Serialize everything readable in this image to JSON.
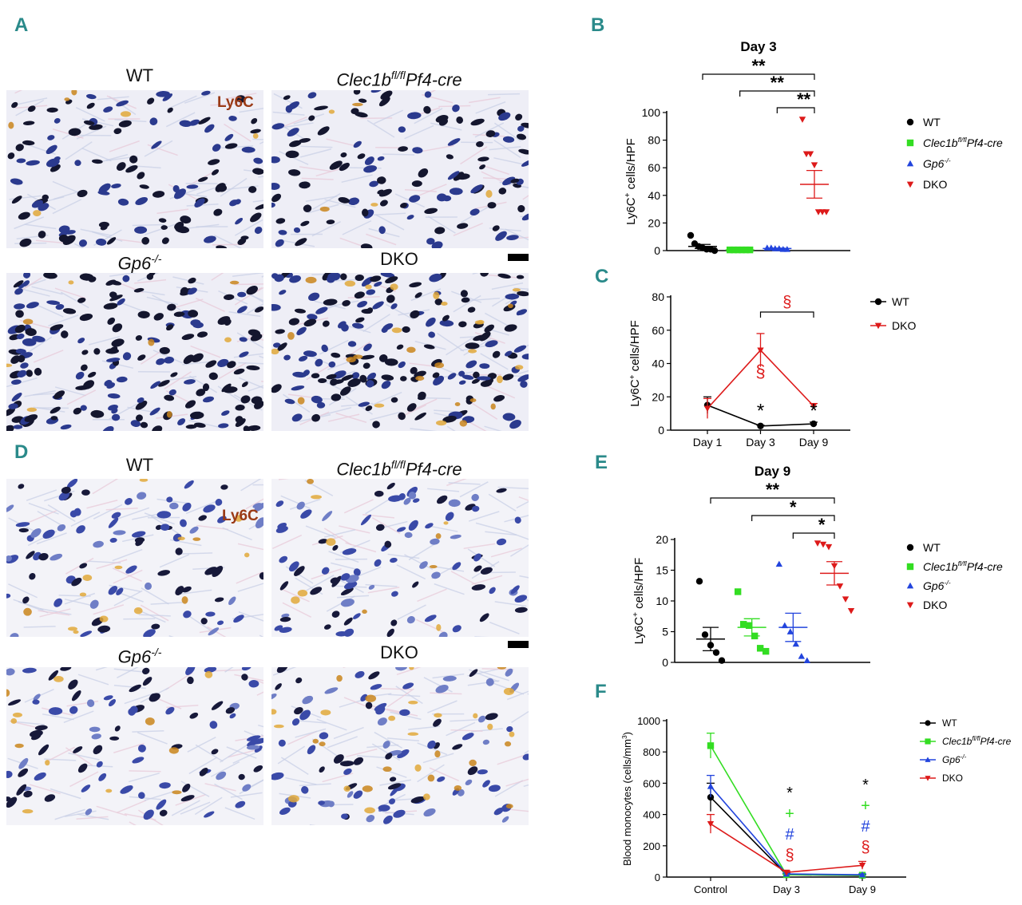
{
  "panels": {
    "A": {
      "letter": "A",
      "stain": "Ly6C",
      "labels": [
        {
          "base": "WT",
          "sup": "",
          "suffix": ""
        },
        {
          "base": "Clec1b",
          "sup": "fl/fl",
          "suffix": "Pf4-cre"
        },
        {
          "base": "Gp6",
          "sup": "-/-",
          "suffix": ""
        },
        {
          "base": "DKO",
          "sup": "",
          "suffix": ""
        }
      ]
    },
    "D": {
      "letter": "D",
      "stain": "Ly6C",
      "labels": [
        {
          "base": "WT",
          "sup": "",
          "suffix": ""
        },
        {
          "base": "Clec1b",
          "sup": "fl/fl",
          "suffix": "Pf4-cre"
        },
        {
          "base": "Gp6",
          "sup": "-/-",
          "suffix": ""
        },
        {
          "base": "DKO",
          "sup": "",
          "suffix": ""
        }
      ]
    },
    "B": {
      "letter": "B"
    },
    "C": {
      "letter": "C"
    },
    "E": {
      "letter": "E"
    },
    "F": {
      "letter": "F"
    }
  },
  "colors": {
    "WT": "#000000",
    "Clec": "#33dd22",
    "Gp6": "#2244dd",
    "DKO": "#dd1a1a",
    "letter": "#2a8a8a",
    "stain": "#9a3a16"
  },
  "chart_data": [
    {
      "id": "B",
      "type": "scatter",
      "title": "Day 3",
      "ylabel": "Ly6C+ cells/HPF",
      "ylabel_parts": {
        "base": "Ly6C",
        "sup": "+",
        "rest": " cells/HPF"
      },
      "ylim": [
        0,
        100
      ],
      "yticks": [
        0,
        20,
        40,
        60,
        80,
        100
      ],
      "legend": [
        {
          "base": "WT",
          "sup": "",
          "suffix": ""
        },
        {
          "base": "Clec1b",
          "sup": "fl/fl",
          "suffix": "Pf4-cre"
        },
        {
          "base": "Gp6",
          "sup": "-/-",
          "suffix": ""
        },
        {
          "base": "DKO",
          "sup": "",
          "suffix": ""
        }
      ],
      "groups": [
        {
          "name": "WT",
          "points": [
            11,
            5,
            3,
            2,
            1,
            1,
            0
          ],
          "mean": 3,
          "sem": 1.5
        },
        {
          "name": "Clec1b fl/fl Pf4-cre",
          "points": [
            0.5,
            0.5,
            0.5,
            0.5,
            0.5,
            0.5
          ],
          "mean": 0.5,
          "sem": 0.2
        },
        {
          "name": "Gp6-/-",
          "points": [
            2,
            2,
            1.5,
            1.5,
            1,
            1
          ],
          "mean": 1.5,
          "sem": 0.3
        },
        {
          "name": "DKO",
          "points": [
            95,
            70,
            70,
            62,
            28,
            28,
            28
          ],
          "mean": 48,
          "sem": 10
        }
      ],
      "significance": [
        {
          "label": "**",
          "from": 0,
          "to": 3
        },
        {
          "label": "**",
          "from": 1,
          "to": 3
        },
        {
          "label": "**",
          "from": 2,
          "to": 3
        }
      ]
    },
    {
      "id": "C",
      "type": "line",
      "ylabel": "Ly6C+ cells/HPF",
      "ylabel_parts": {
        "base": "Ly6C",
        "sup": "+",
        "rest": " cells/HPF"
      },
      "categories": [
        "Day 1",
        "Day 3",
        "Day 9"
      ],
      "ylim": [
        0,
        80
      ],
      "yticks": [
        0,
        20,
        40,
        60,
        80
      ],
      "series": [
        {
          "name": "WT",
          "values": [
            15,
            2.5,
            3.8
          ],
          "sem": [
            5,
            0.5,
            1
          ]
        },
        {
          "name": "DKO",
          "values": [
            13,
            48,
            14.5
          ],
          "sem": [
            6,
            10,
            1.5
          ]
        }
      ],
      "annotations": [
        {
          "label": "*",
          "category": 1,
          "y": 6,
          "color": "WT"
        },
        {
          "label": "*",
          "category": 2,
          "y": 6,
          "color": "WT"
        },
        {
          "label": "§",
          "category": 1,
          "y": 30,
          "color": "DKO"
        }
      ],
      "bracket": {
        "label": "§",
        "from": 1,
        "to": 2,
        "color": "DKO"
      }
    },
    {
      "id": "E",
      "type": "scatter",
      "title": "Day 9",
      "ylabel": "Ly6C+ cells/HPF",
      "ylabel_parts": {
        "base": "Ly6C",
        "sup": "+",
        "rest": " cells/HPF"
      },
      "ylim": [
        0,
        20
      ],
      "yticks": [
        0,
        5,
        10,
        15,
        20
      ],
      "legend": [
        {
          "base": "WT",
          "sup": "",
          "suffix": ""
        },
        {
          "base": "Clec1b",
          "sup": "fl/fl",
          "suffix": "Pf4-cre"
        },
        {
          "base": "Gp6",
          "sup": "-/-",
          "suffix": ""
        },
        {
          "base": "DKO",
          "sup": "",
          "suffix": ""
        }
      ],
      "groups": [
        {
          "name": "WT",
          "points": [
            13.2,
            4.5,
            2.8,
            1.6,
            0.3
          ],
          "mean": 3.8,
          "sem": 1.9
        },
        {
          "name": "Clec1b fl/fl Pf4-cre",
          "points": [
            11.5,
            6.2,
            6,
            4.3,
            2.3,
            1.8
          ],
          "mean": 5.7,
          "sem": 1.4
        },
        {
          "name": "Gp6-/-",
          "points": [
            16,
            6,
            5,
            3,
            1,
            0.3
          ],
          "mean": 5.7,
          "sem": 2.3
        },
        {
          "name": "DKO",
          "points": [
            19.4,
            19.2,
            18.8,
            15.7,
            12.4,
            10.3,
            8.4
          ],
          "mean": 14.5,
          "sem": 1.9
        }
      ],
      "significance": [
        {
          "label": "**",
          "from": 0,
          "to": 3
        },
        {
          "label": "*",
          "from": 1,
          "to": 3
        },
        {
          "label": "*",
          "from": 2,
          "to": 3
        }
      ]
    },
    {
      "id": "F",
      "type": "line",
      "ylabel": "Blood monocytes (cells/mm3)",
      "ylabel_parts": {
        "base": "Blood monocytes (cells/mm",
        "sup": "3",
        "rest": ")"
      },
      "categories": [
        "Control",
        "Day 3",
        "Day 9"
      ],
      "ylim": [
        0,
        1000
      ],
      "yticks": [
        0,
        200,
        400,
        600,
        800,
        1000
      ],
      "legend": [
        {
          "base": "WT",
          "sup": "",
          "suffix": ""
        },
        {
          "base": "Clec1b",
          "sup": "fl/fl",
          "suffix": "Pf4-cre"
        },
        {
          "base": "Gp6",
          "sup": "-/-",
          "suffix": ""
        },
        {
          "base": "DKO",
          "sup": "",
          "suffix": ""
        }
      ],
      "series": [
        {
          "name": "WT",
          "values": [
            510,
            15,
            10
          ],
          "sem": [
            90,
            5,
            5
          ]
        },
        {
          "name": "Clec1b fl/fl Pf4-cre",
          "values": [
            840,
            15,
            12
          ],
          "sem": [
            80,
            5,
            5
          ]
        },
        {
          "name": "Gp6-/-",
          "values": [
            580,
            20,
            15
          ],
          "sem": [
            70,
            5,
            5
          ]
        },
        {
          "name": "DKO",
          "values": [
            340,
            30,
            75
          ],
          "sem": [
            60,
            10,
            25
          ]
        }
      ],
      "annotations": [
        {
          "labels": [
            "*",
            "+",
            "#",
            "§"
          ],
          "category": 1
        },
        {
          "labels": [
            "*",
            "+",
            "#",
            "§"
          ],
          "category": 2
        }
      ]
    }
  ]
}
